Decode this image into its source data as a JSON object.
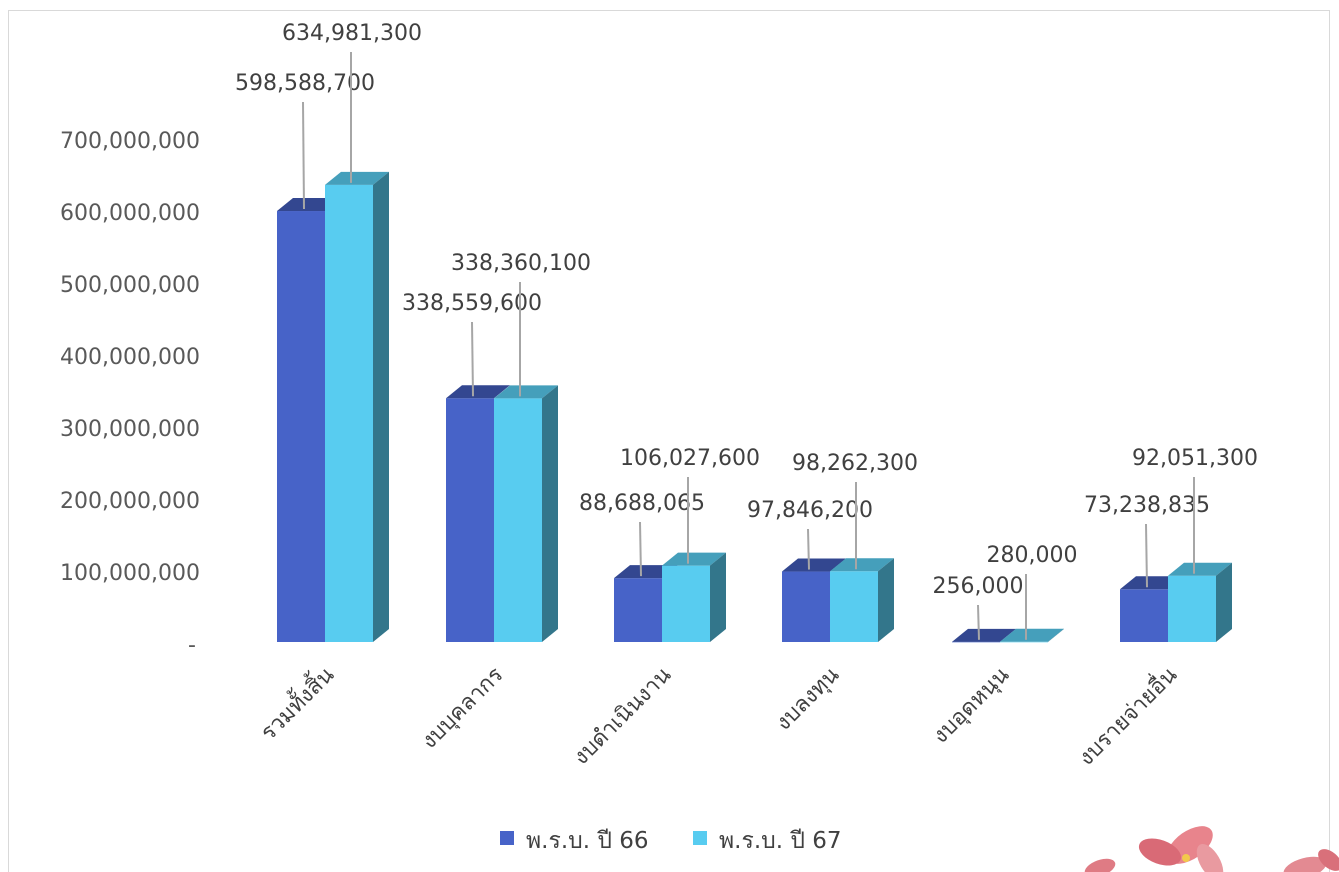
{
  "chart_data": {
    "type": "bar",
    "style": "3d-clustered-column",
    "categories": [
      "รวมทั้งสิ้น",
      "งบบุคลากร",
      "งบดำเนินงาน",
      "งบลงทุน",
      "งบอุดหนุน",
      "งบรายจ่ายอื่น"
    ],
    "series": [
      {
        "name": "พ.ร.บ. ปี 66",
        "color": "#4763C8",
        "values": [
          598588700,
          338559600,
          88688065,
          97846200,
          256000,
          73238835
        ],
        "labels": [
          "598,588,700",
          "338,559,600",
          "88,688,065",
          "97,846,200",
          "256,000",
          "73,238,835"
        ]
      },
      {
        "name": "พ.ร.บ. ปี 67",
        "color": "#58CCF0",
        "values": [
          634981300,
          338360100,
          106027600,
          98262300,
          280000,
          92051300
        ],
        "labels": [
          "634,981,300",
          "338,360,100",
          "106,027,600",
          "98,262,300",
          "280,000",
          "92,051,300"
        ]
      }
    ],
    "ylim": [
      0,
      700000000
    ],
    "y_ticks": [
      {
        "value": 0,
        "label": "-"
      },
      {
        "value": 100000000,
        "label": "100,000,000"
      },
      {
        "value": 200000000,
        "label": "200,000,000"
      },
      {
        "value": 300000000,
        "label": "300,000,000"
      },
      {
        "value": 400000000,
        "label": "400,000,000"
      },
      {
        "value": 500000000,
        "label": "500,000,000"
      },
      {
        "value": 600000000,
        "label": "600,000,000"
      },
      {
        "value": 700000000,
        "label": "700,000,000"
      }
    ],
    "grid": false,
    "legend_position": "bottom-center"
  },
  "decoration": {
    "name": "pink-flower-decoration"
  }
}
